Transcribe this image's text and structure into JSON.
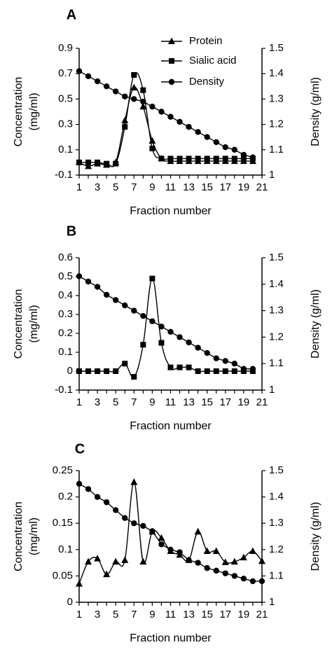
{
  "chart_data": [
    {
      "type": "line",
      "panel_label": "A",
      "xlabel": "Fraction number",
      "ylabel_left": [
        "Concentration",
        "(mg/ml)"
      ],
      "ylabel_right": "Density (g/ml)",
      "xlim": [
        1,
        21
      ],
      "ylim_left": [
        -0.1,
        0.9
      ],
      "ylim_right": [
        1.0,
        1.5
      ],
      "x_ticks": [
        1,
        3,
        5,
        7,
        9,
        11,
        13,
        15,
        17,
        19,
        21
      ],
      "y_left_ticks": [
        -0.1,
        0.1,
        0.3,
        0.5,
        0.7,
        0.9
      ],
      "y_right_ticks": [
        1,
        1.1,
        1.2,
        1.3,
        1.4,
        1.5
      ],
      "legend": {
        "position": "top-right",
        "entries": [
          "Protein",
          "Sialic acid",
          "Density"
        ]
      },
      "series": [
        {
          "name": "Protein",
          "marker": "triangle",
          "axis": "left",
          "x": [
            1,
            2,
            3,
            4,
            5,
            6,
            7,
            8,
            9,
            10,
            11,
            12,
            13,
            14,
            15,
            16,
            17,
            18,
            19,
            20
          ],
          "values": [
            0.0,
            -0.03,
            -0.01,
            -0.02,
            0.0,
            0.33,
            0.59,
            0.44,
            0.17,
            0.03,
            0.01,
            0.01,
            0.01,
            0.01,
            0.01,
            0.01,
            0.01,
            0.01,
            0.01,
            0.01
          ]
        },
        {
          "name": "Sialic acid",
          "marker": "square",
          "axis": "left",
          "x": [
            1,
            2,
            3,
            4,
            5,
            6,
            7,
            8,
            9,
            10,
            11,
            12,
            13,
            14,
            15,
            16,
            17,
            18,
            19,
            20
          ],
          "values": [
            0.0,
            0.0,
            0.0,
            -0.01,
            -0.01,
            0.28,
            0.69,
            0.57,
            0.11,
            0.03,
            0.03,
            0.03,
            0.03,
            0.03,
            0.03,
            0.03,
            0.03,
            0.03,
            0.03,
            0.03
          ]
        },
        {
          "name": "Density",
          "marker": "circle",
          "axis": "right",
          "x": [
            1,
            2,
            3,
            4,
            5,
            6,
            7,
            8,
            9,
            10,
            11,
            12,
            13,
            14,
            15,
            16,
            17,
            18,
            19,
            20
          ],
          "values": [
            1.41,
            1.39,
            1.37,
            1.35,
            1.33,
            1.31,
            1.3,
            1.29,
            1.27,
            1.25,
            1.23,
            1.21,
            1.19,
            1.17,
            1.15,
            1.13,
            1.11,
            1.1,
            1.08,
            1.07
          ]
        }
      ]
    },
    {
      "type": "line",
      "panel_label": "B",
      "xlabel": "Fraction number",
      "ylabel_left": [
        "Concentration",
        "(mg/ml)"
      ],
      "ylabel_right": "Density (g/ml)",
      "xlim": [
        1,
        21
      ],
      "ylim_left": [
        -0.1,
        0.6
      ],
      "ylim_right": [
        1.0,
        1.5
      ],
      "x_ticks": [
        1,
        3,
        5,
        7,
        9,
        11,
        13,
        15,
        17,
        19,
        21
      ],
      "y_left_ticks": [
        -0.1,
        0,
        0.1,
        0.2,
        0.3,
        0.4,
        0.5,
        0.6
      ],
      "y_right_ticks": [
        1,
        1.1,
        1.2,
        1.3,
        1.4,
        1.5
      ],
      "series": [
        {
          "name": "Sialic acid",
          "marker": "square",
          "axis": "left",
          "x": [
            1,
            2,
            3,
            4,
            5,
            6,
            7,
            8,
            9,
            10,
            11,
            12,
            13,
            14,
            15,
            16,
            17,
            18,
            19,
            20
          ],
          "values": [
            0.0,
            0.0,
            0.0,
            0.0,
            0.0,
            0.04,
            -0.03,
            0.14,
            0.49,
            0.15,
            0.02,
            0.02,
            0.02,
            0.0,
            0.0,
            0.0,
            0.0,
            0.0,
            0.0,
            0.0
          ]
        },
        {
          "name": "Density",
          "marker": "circle",
          "axis": "right",
          "x": [
            1,
            2,
            3,
            4,
            5,
            6,
            7,
            8,
            9,
            10,
            11,
            12,
            13,
            14,
            15,
            16,
            17,
            18,
            19,
            20
          ],
          "values": [
            1.43,
            1.41,
            1.39,
            1.36,
            1.34,
            1.32,
            1.3,
            1.28,
            1.26,
            1.24,
            1.22,
            1.2,
            1.18,
            1.16,
            1.14,
            1.12,
            1.11,
            1.1,
            1.08,
            1.08
          ]
        }
      ]
    },
    {
      "type": "line",
      "panel_label": "C",
      "xlabel": "Fraction number",
      "ylabel_left": [
        "Concentration",
        "(mg/ml)"
      ],
      "ylabel_right": "Density (g/ml)",
      "xlim": [
        1,
        21
      ],
      "ylim_left": [
        0,
        0.25
      ],
      "ylim_right": [
        1.0,
        1.5
      ],
      "x_ticks": [
        1,
        3,
        5,
        7,
        9,
        11,
        13,
        15,
        17,
        19,
        21
      ],
      "y_left_ticks": [
        0,
        0.05,
        0.1,
        0.15,
        0.2,
        0.25
      ],
      "y_right_ticks": [
        1,
        1.1,
        1.2,
        1.3,
        1.4,
        1.5
      ],
      "series": [
        {
          "name": "Protein",
          "marker": "triangle",
          "axis": "left",
          "x": [
            1,
            2,
            3,
            4,
            5,
            6,
            7,
            8,
            9,
            10,
            11,
            12,
            13,
            14,
            15,
            16,
            17,
            18,
            19,
            20,
            21
          ],
          "values": [
            0.035,
            0.077,
            0.083,
            0.053,
            0.077,
            0.08,
            0.228,
            0.077,
            0.134,
            0.122,
            0.097,
            0.09,
            0.08,
            0.134,
            0.097,
            0.097,
            0.076,
            0.077,
            0.085,
            0.097,
            0.078
          ]
        },
        {
          "name": "Density",
          "marker": "circle",
          "axis": "right",
          "x": [
            1,
            2,
            3,
            4,
            5,
            6,
            7,
            8,
            9,
            10,
            11,
            12,
            13,
            14,
            15,
            16,
            17,
            18,
            19,
            20,
            21
          ],
          "values": [
            1.45,
            1.43,
            1.4,
            1.38,
            1.35,
            1.32,
            1.3,
            1.29,
            1.27,
            1.22,
            1.2,
            1.19,
            1.16,
            1.15,
            1.13,
            1.12,
            1.11,
            1.1,
            1.09,
            1.08,
            1.08
          ]
        }
      ]
    }
  ]
}
